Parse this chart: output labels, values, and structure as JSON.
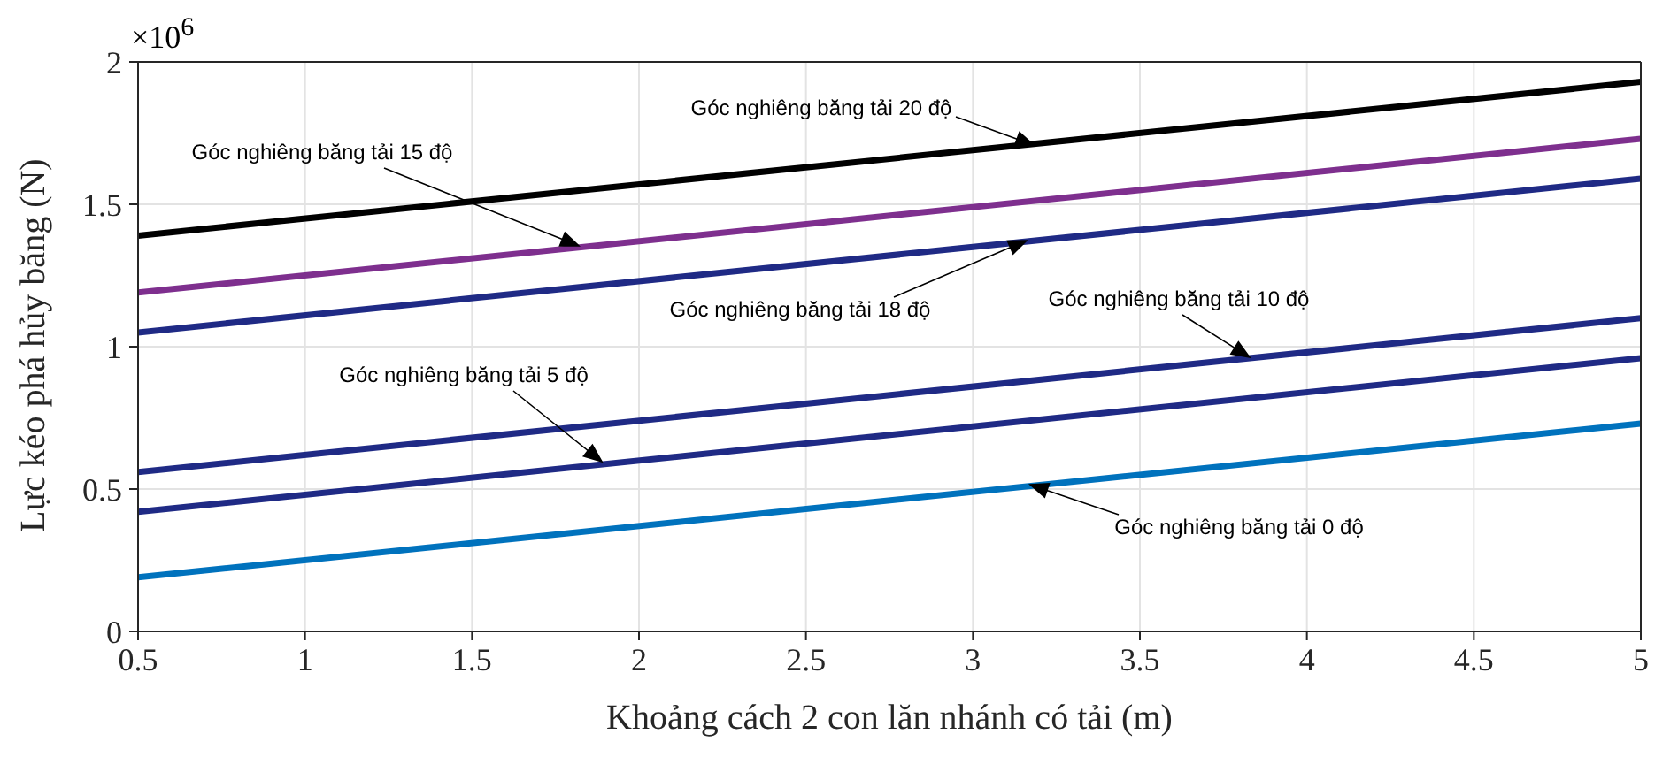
{
  "chart_data": {
    "type": "line",
    "xlabel": "Khoảng cách 2 con lăn nhánh có tải (m)",
    "ylabel": "Lực kéo phá hủy băng (N)",
    "x": [
      0.5,
      5
    ],
    "series": [
      {
        "color": "#000000",
        "values": [
          1.39,
          1.93
        ]
      },
      {
        "color": "#7e2f8e",
        "values": [
          1.19,
          1.73
        ]
      },
      {
        "color": "#1f2a85",
        "values": [
          1.05,
          1.59
        ]
      },
      {
        "color": "#1f2a85",
        "values": [
          0.56,
          1.1
        ]
      },
      {
        "color": "#1f2a85",
        "values": [
          0.42,
          0.96
        ]
      },
      {
        "color": "#0072bd",
        "values": [
          0.19,
          0.73
        ]
      }
    ],
    "xlim": [
      0.5,
      5
    ],
    "xticks": [
      0.5,
      1,
      1.5,
      2,
      2.5,
      3,
      3.5,
      4,
      4.5,
      5
    ],
    "ylim": [
      0,
      2
    ],
    "yticks": [
      0,
      0.5,
      1,
      1.5,
      2
    ],
    "grid": true,
    "marker": "none",
    "line_style": "solid",
    "annotations": [
      "×10$^{6}$",
      "Góc nghiêng băng tải 20 độ",
      "Góc nghiêng băng tải 15 độ",
      "Góc nghiêng băng tải 18 độ",
      "Góc nghiêng băng tải 10 độ",
      "Góc nghiêng băng tải 5 độ",
      "Góc nghiêng băng tải 0 độ"
    ]
  }
}
